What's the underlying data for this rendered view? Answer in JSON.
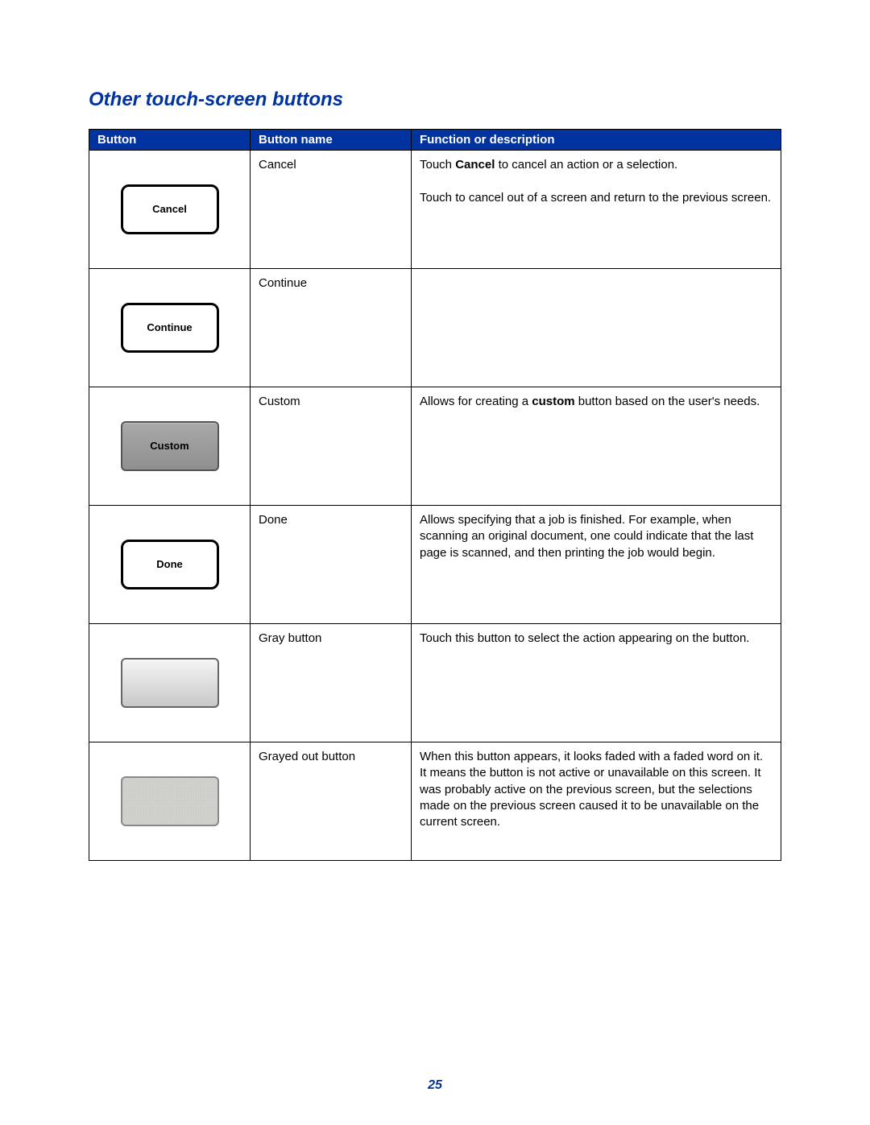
{
  "title": "Other touch-screen buttons",
  "page_number": "25",
  "headers": {
    "button": "Button",
    "name": "Button name",
    "desc": "Function or description"
  },
  "rows": [
    {
      "button_style": "outline",
      "button_label": "Cancel",
      "name": "Cancel",
      "desc_html": "Touch <b>Cancel</b> to cancel an action or a selection.<br><br>Touch to cancel out of a screen and return to the previous screen."
    },
    {
      "button_style": "outline",
      "button_label": "Continue",
      "name": "Continue",
      "desc_html": ""
    },
    {
      "button_style": "dark",
      "button_label": "Custom",
      "name": "Custom",
      "desc_html": "Allows for creating a <b>custom</b> button based on the user's needs."
    },
    {
      "button_style": "outline",
      "button_label": "Done",
      "name": "Done",
      "desc_html": "Allows specifying that a job is finished. For example, when scanning an original document, one could indicate that the last page is scanned, and then printing the job would begin."
    },
    {
      "button_style": "gray",
      "button_label": "",
      "name": "Gray button",
      "desc_html": "Touch this button to select the action appearing on the button."
    },
    {
      "button_style": "grayout",
      "button_label": "",
      "name": "Grayed out button",
      "desc_html": "When this button appears, it looks faded with a faded word on it. It means the button is not active or unavailable on this screen. It was probably active on the previous screen, but the selections made on the previous screen caused it to be unavailable on the current screen."
    }
  ],
  "colors": {
    "header_bg": "#0033a0",
    "header_text": "#ffffff",
    "title_color": "#0033a0",
    "border": "#000000"
  }
}
